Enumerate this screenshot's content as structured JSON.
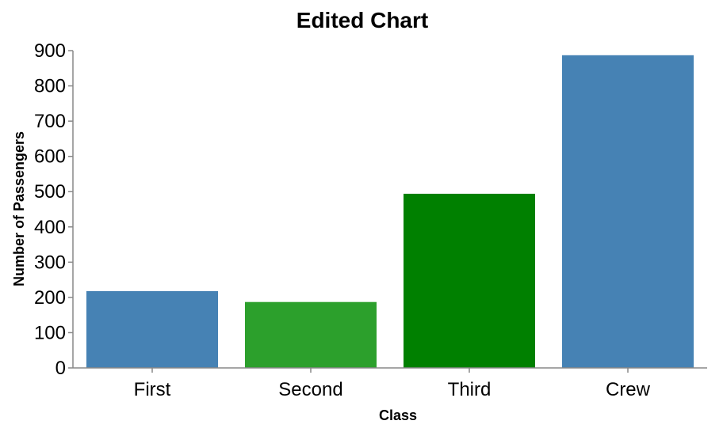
{
  "chart_data": {
    "type": "bar",
    "title": "Edited Chart",
    "xlabel": "Class",
    "ylabel": "Number of Passengers",
    "categories": [
      "First",
      "Second",
      "Third",
      "Crew"
    ],
    "values": [
      218,
      187,
      494,
      887
    ],
    "colors": [
      "#4682b4",
      "#2ca02c",
      "#008000",
      "#4682b4"
    ],
    "ylim": [
      0,
      900
    ],
    "yticks": [
      0,
      100,
      200,
      300,
      400,
      500,
      600,
      700,
      800,
      900
    ],
    "grid": false,
    "legend": "none"
  }
}
